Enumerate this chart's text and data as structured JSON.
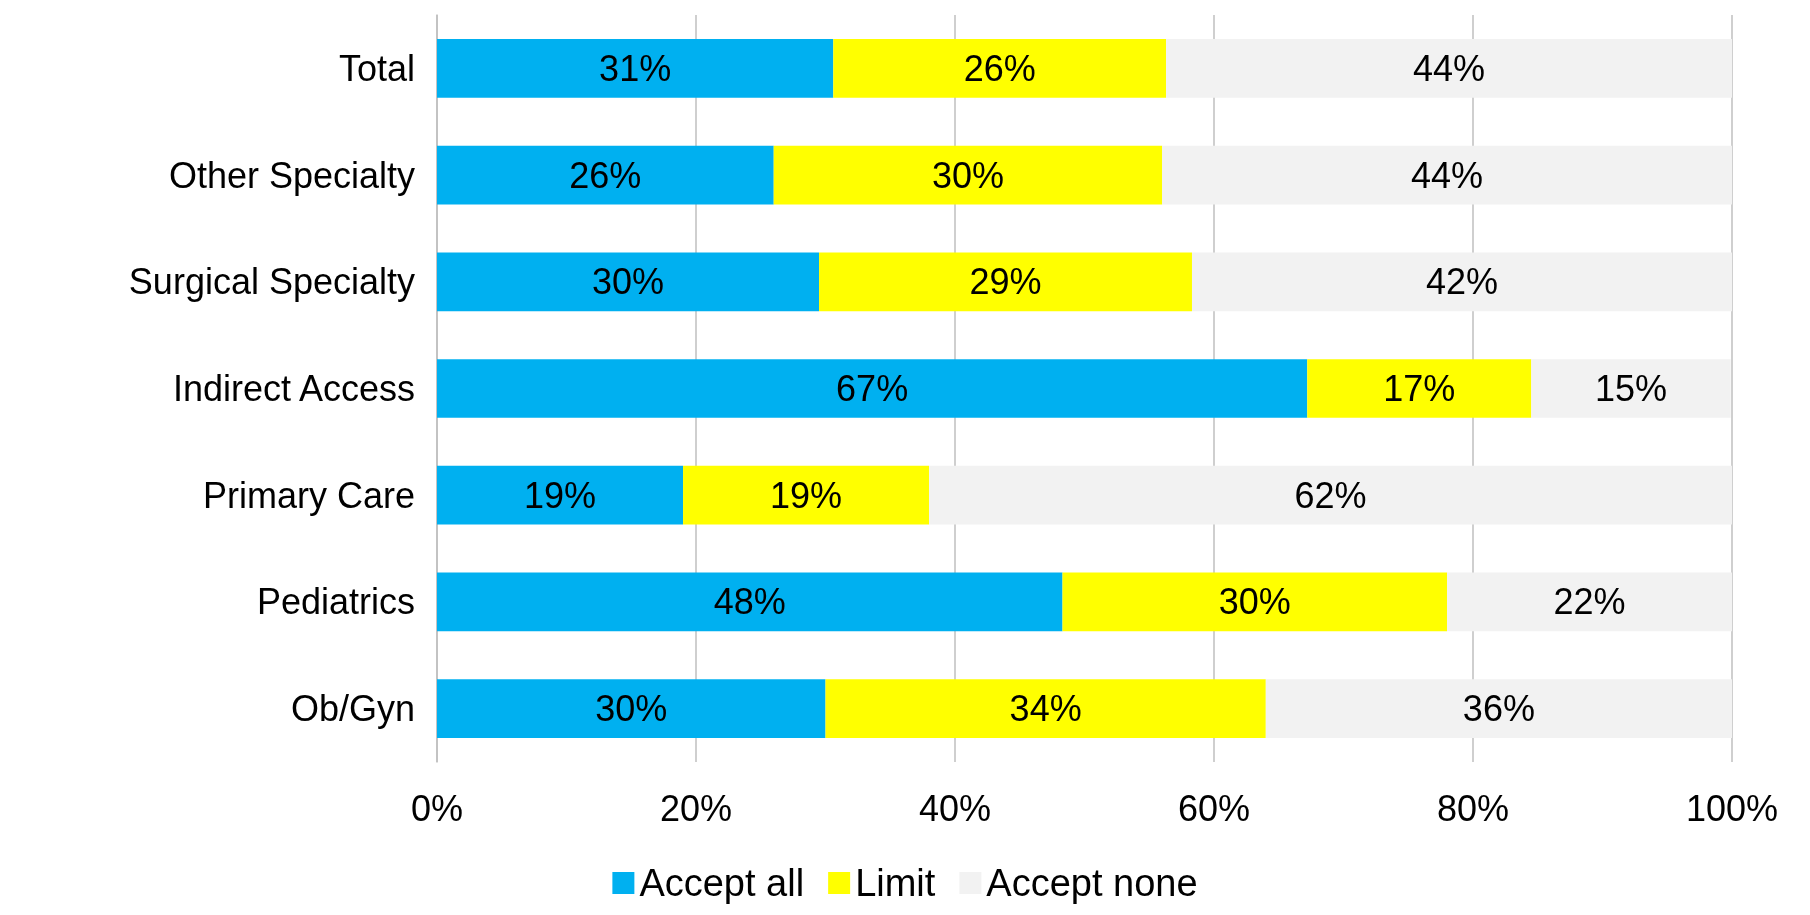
{
  "chart_data": {
    "type": "bar",
    "orientation": "horizontal",
    "stacked": true,
    "categories": [
      "Total",
      "Other Specialty",
      "Surgical Specialty",
      "Indirect Access",
      "Primary Care",
      "Pediatrics",
      "Ob/Gyn"
    ],
    "series": [
      {
        "name": "Accept all",
        "color": "#00b0f0",
        "values": [
          30.6,
          26,
          29.5,
          67.2,
          19,
          48.3,
          30
        ],
        "value_labels": [
          "31%",
          "26%",
          "30%",
          "67%",
          "19%",
          "48%",
          "30%"
        ]
      },
      {
        "name": "Limit",
        "color": "#ffff00",
        "values": [
          25.7,
          30,
          28.8,
          17.3,
          19,
          29.7,
          34
        ],
        "value_labels": [
          "26%",
          "30%",
          "29%",
          "17%",
          "19%",
          "30%",
          "34%"
        ]
      },
      {
        "name": "Accept none",
        "color": "#f2f2f2",
        "values": [
          43.7,
          44,
          41.7,
          15.4,
          62,
          22,
          36
        ],
        "value_labels": [
          "44%",
          "44%",
          "42%",
          "15%",
          "62%",
          "22%",
          "36%"
        ]
      }
    ],
    "xlim": [
      0,
      100
    ],
    "xticks": [
      {
        "value": 0,
        "label": "0%"
      },
      {
        "value": 20,
        "label": "20%"
      },
      {
        "value": 40,
        "label": "40%"
      },
      {
        "value": 60,
        "label": "60%"
      },
      {
        "value": 80,
        "label": "80%"
      },
      {
        "value": 100,
        "label": "100%"
      }
    ],
    "grid": "x",
    "legend": "bottom"
  }
}
